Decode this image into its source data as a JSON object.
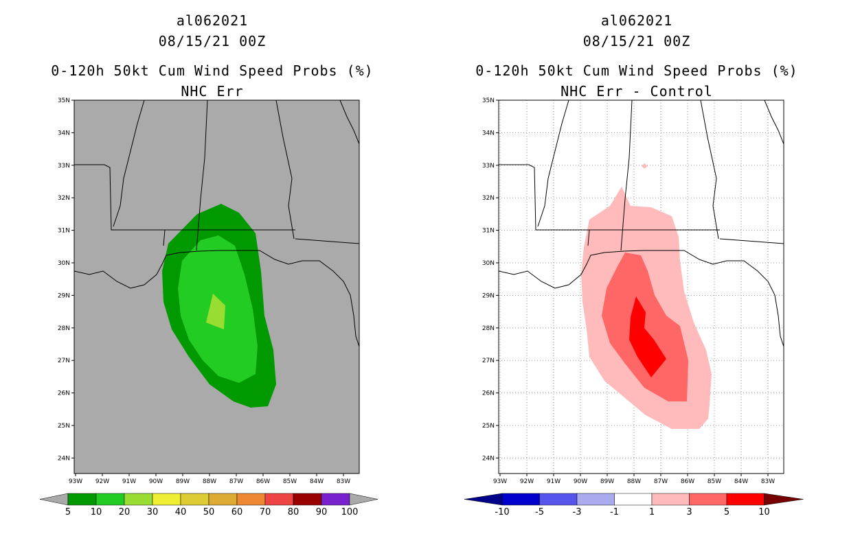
{
  "left": {
    "storm_id": "al062021",
    "datetime": "08/15/21 00Z",
    "product": "0-120h 50kt Cum Wind Speed Probs (%)",
    "subtitle": "NHC Err",
    "lat_labels": [
      "35N",
      "34N",
      "33N",
      "32N",
      "31N",
      "30N",
      "29N",
      "28N",
      "27N",
      "26N",
      "25N",
      "24N"
    ],
    "lon_labels": [
      "93W",
      "92W",
      "91W",
      "90W",
      "89W",
      "88W",
      "87W",
      "86W",
      "85W",
      "84W",
      "83W"
    ],
    "colorbar": {
      "labels": [
        "5",
        "10",
        "20",
        "30",
        "40",
        "50",
        "60",
        "70",
        "80",
        "90",
        "100"
      ],
      "colors": [
        "#009900",
        "#22cc22",
        "#99dd33",
        "#eeee33",
        "#ddcc33",
        "#ddaa33",
        "#ee8833",
        "#ee4444",
        "#990000",
        "#7722cc"
      ],
      "end_color": "#aaaaaa"
    },
    "background": "#aaaaaa"
  },
  "right": {
    "storm_id": "al062021",
    "datetime": "08/15/21 00Z",
    "product": "0-120h 50kt Cum Wind Speed Probs (%)",
    "subtitle": "NHC Err - Control",
    "lat_labels": [
      "35N",
      "34N",
      "33N",
      "32N",
      "31N",
      "30N",
      "29N",
      "28N",
      "27N",
      "26N",
      "25N",
      "24N"
    ],
    "lon_labels": [
      "93W",
      "92W",
      "91W",
      "90W",
      "89W",
      "88W",
      "87W",
      "86W",
      "85W",
      "84W",
      "83W"
    ],
    "colorbar": {
      "labels": [
        "-10",
        "-5",
        "-3",
        "-1",
        "1",
        "3",
        "5",
        "10"
      ],
      "colors": [
        "#0000cc",
        "#5555ee",
        "#aaaaee",
        "#ffffff",
        "#ffbbbb",
        "#ff6666",
        "#ff0000"
      ],
      "low_end": "#000088",
      "high_end": "#770000"
    },
    "background": "#ffffff"
  }
}
